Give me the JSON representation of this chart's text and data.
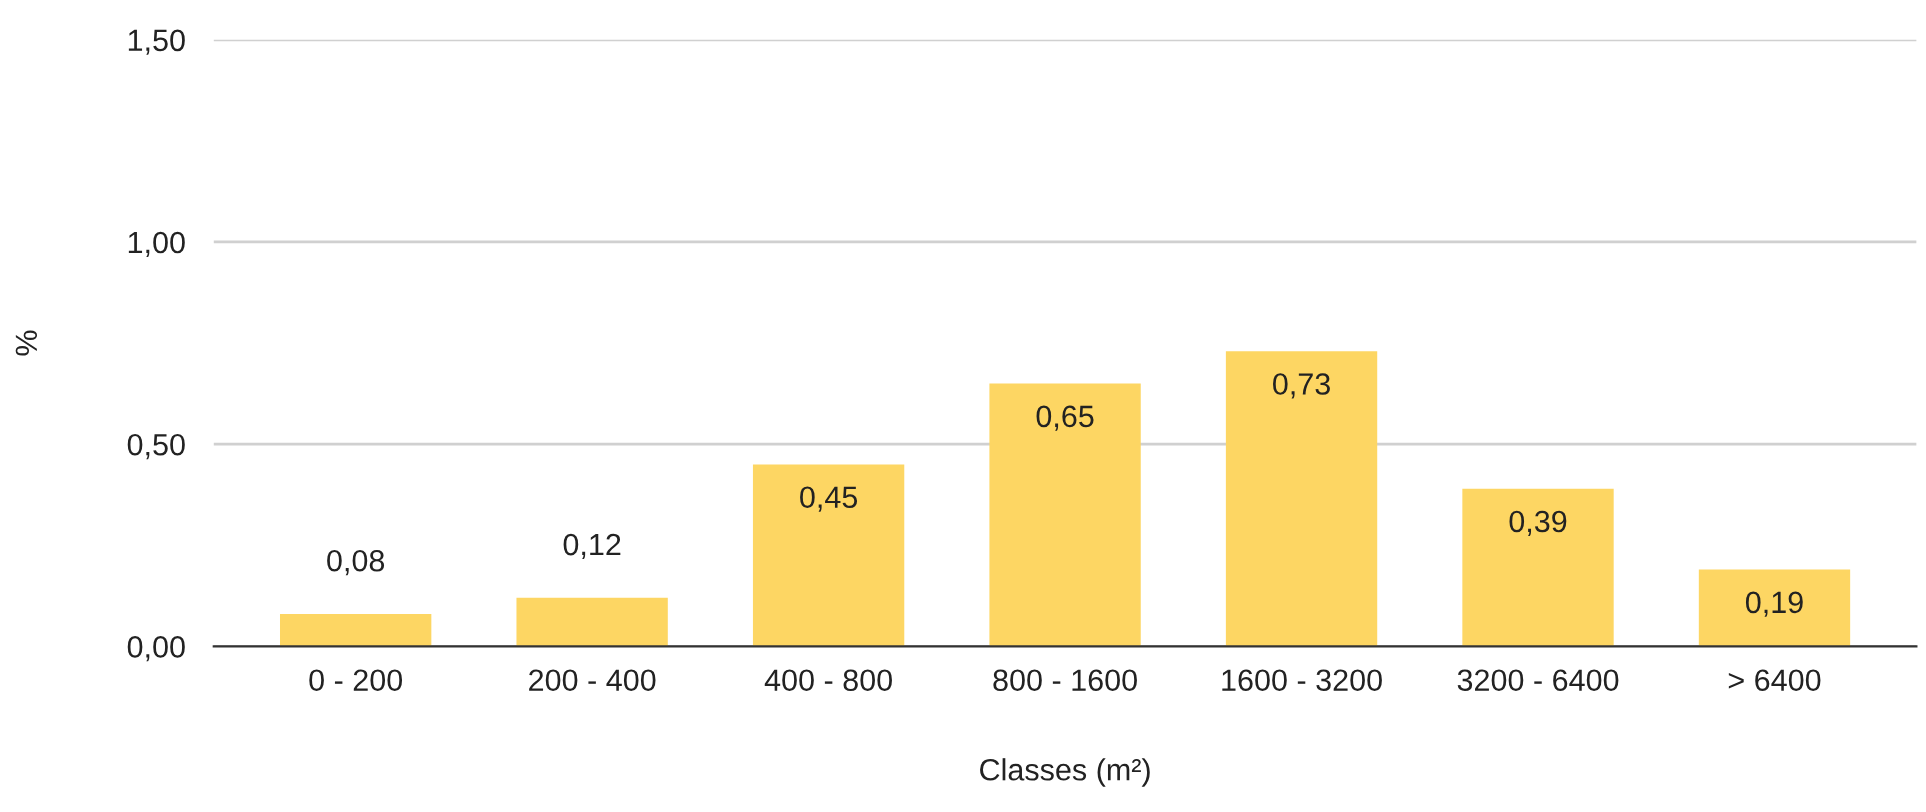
{
  "chart_data": {
    "type": "bar",
    "xlabel": "Classes (m²)",
    "ylabel": "%",
    "categories": [
      "0 - 200",
      "200 - 400",
      "400 - 800",
      "800 - 1600",
      "1600 - 3200",
      "3200 - 6400",
      "> 6400"
    ],
    "values": [
      0.08,
      0.12,
      0.45,
      0.65,
      0.73,
      0.39,
      0.19
    ],
    "value_labels": [
      "0,08",
      "0,12",
      "0,45",
      "0,65",
      "0,73",
      "0,39",
      "0,19"
    ],
    "color": "#fdd663",
    "ylim": [
      0,
      1.5
    ],
    "yticks": [
      {
        "value": 0,
        "label": "0,00"
      },
      {
        "value": 0.5,
        "label": "0,50"
      },
      {
        "value": 1.0,
        "label": "1,00"
      },
      {
        "value": 1.5,
        "label": "1,50"
      }
    ],
    "grid": "y",
    "legend": false
  }
}
